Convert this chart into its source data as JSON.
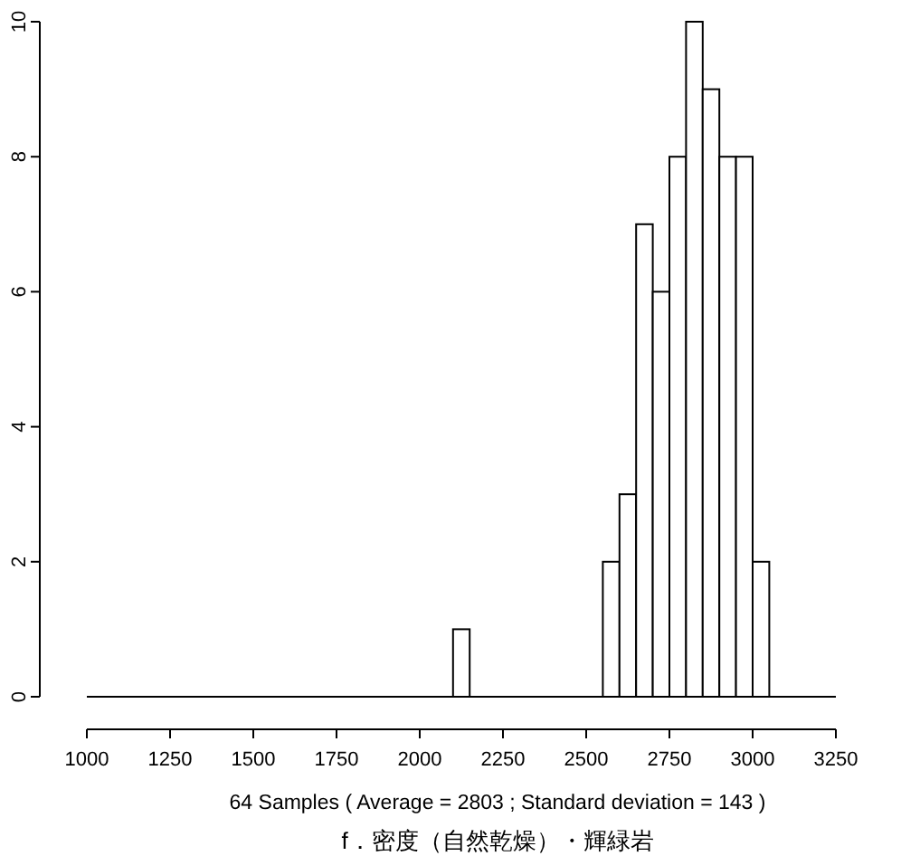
{
  "chart_data": {
    "type": "histogram",
    "title": "f．密度（自然乾燥）・輝緑岩",
    "xlabel": "64 Samples ( Average = 2803 ; Standard deviation = 143 )",
    "bins": [
      2100,
      2150,
      2200,
      2250,
      2300,
      2350,
      2400,
      2450,
      2500,
      2550,
      2600,
      2650,
      2700,
      2750,
      2800,
      2850,
      2900,
      2950,
      3000,
      3050
    ],
    "values": [
      1,
      0,
      0,
      0,
      0,
      0,
      0,
      0,
      0,
      2,
      3,
      7,
      6,
      8,
      10,
      9,
      8,
      8,
      2
    ],
    "color": "#ffffff",
    "xlim": [
      1000,
      3250
    ],
    "xticks": [
      1000,
      1250,
      1500,
      1750,
      2000,
      2250,
      2500,
      2750,
      3000,
      3250
    ],
    "ylim": [
      0,
      10
    ],
    "yticks": [
      0,
      2,
      4,
      6,
      8,
      10
    ],
    "grid": false
  }
}
